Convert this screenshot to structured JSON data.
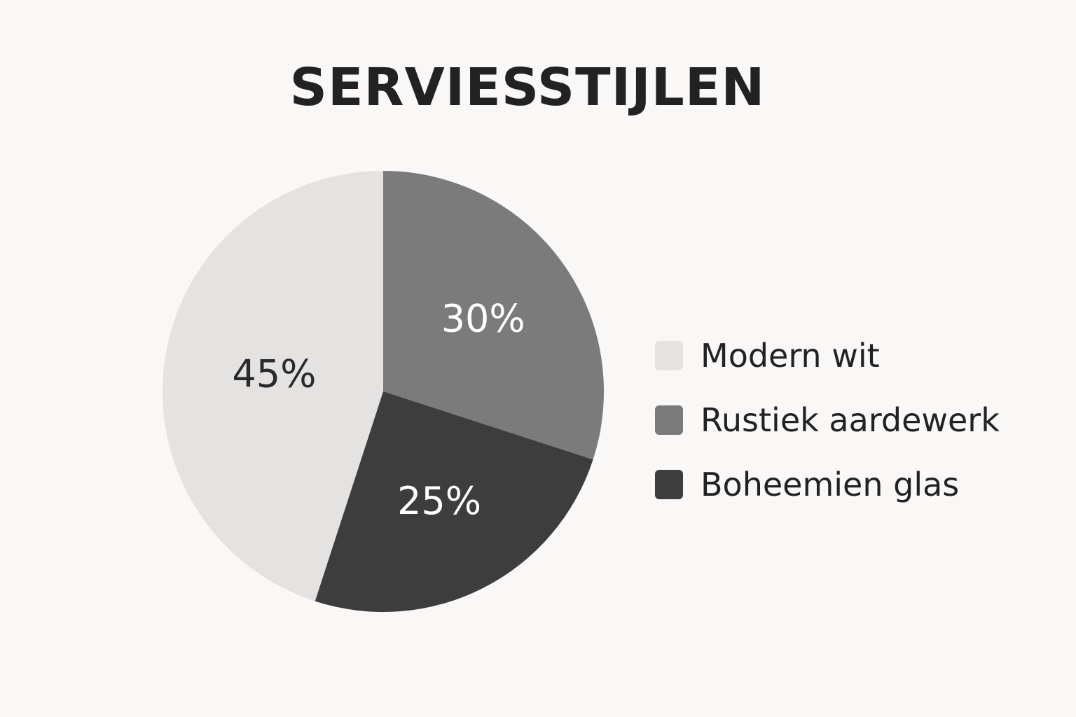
{
  "chart_data": {
    "type": "pie",
    "title": "SERVIESSTIJLEN",
    "slices": [
      {
        "label": "Rustiek aardewerk",
        "value": 30,
        "display": "30%",
        "color": "#7b7b7b",
        "label_color": "#ffffff"
      },
      {
        "label": "Boheemien glas",
        "value": 25,
        "display": "25%",
        "color": "#3d3d3d",
        "label_color": "#ffffff"
      },
      {
        "label": "Modern wit",
        "value": 45,
        "display": "45%",
        "color": "#e4e3e1",
        "label_color": "#2a2a2a"
      }
    ],
    "start_angle": "12 o'clock",
    "direction": "clockwise",
    "legend": {
      "placement": "right",
      "items": [
        {
          "label": "Modern wit",
          "color": "#e4e3e1"
        },
        {
          "label": "Rustiek aardewerk",
          "color": "#7b7b7b"
        },
        {
          "label": "Boheemien glas",
          "color": "#3d3d3d"
        }
      ]
    }
  }
}
